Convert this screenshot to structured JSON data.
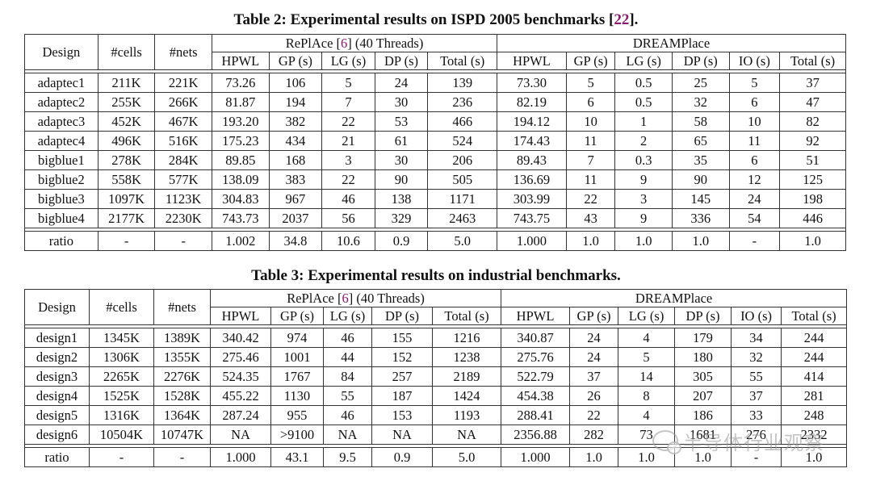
{
  "table2": {
    "caption_prefix": "Table 2:  Experimental results on ISPD 2005 benchmarks [",
    "caption_ref": "22",
    "caption_suffix": "].",
    "group_headers": {
      "design": "Design",
      "cells": "#cells",
      "nets": "#nets",
      "replace_prefix": "RePlAce [",
      "replace_ref": "6",
      "replace_suffix": "] (40 Threads)",
      "dreamplace": "DREAMPlace"
    },
    "sub_headers": [
      "HPWL",
      "GP (s)",
      "LG (s)",
      "DP (s)",
      "Total (s)",
      "HPWL",
      "GP (s)",
      "LG (s)",
      "DP (s)",
      "IO (s)",
      "Total (s)"
    ],
    "rows": [
      [
        "adaptec1",
        "211K",
        "221K",
        "73.26",
        "106",
        "5",
        "24",
        "139",
        "73.30",
        "5",
        "0.5",
        "25",
        "5",
        "37"
      ],
      [
        "adaptec2",
        "255K",
        "266K",
        "81.87",
        "194",
        "7",
        "30",
        "236",
        "82.19",
        "6",
        "0.5",
        "32",
        "6",
        "47"
      ],
      [
        "adaptec3",
        "452K",
        "467K",
        "193.20",
        "382",
        "22",
        "53",
        "466",
        "194.12",
        "10",
        "1",
        "58",
        "10",
        "82"
      ],
      [
        "adaptec4",
        "496K",
        "516K",
        "175.23",
        "434",
        "21",
        "61",
        "524",
        "174.43",
        "11",
        "2",
        "65",
        "11",
        "92"
      ],
      [
        "bigblue1",
        "278K",
        "284K",
        "89.85",
        "168",
        "3",
        "30",
        "206",
        "89.43",
        "7",
        "0.3",
        "35",
        "6",
        "51"
      ],
      [
        "bigblue2",
        "558K",
        "577K",
        "138.09",
        "383",
        "22",
        "90",
        "505",
        "136.69",
        "11",
        "9",
        "90",
        "12",
        "125"
      ],
      [
        "bigblue3",
        "1097K",
        "1123K",
        "304.83",
        "967",
        "46",
        "138",
        "1171",
        "303.99",
        "22",
        "3",
        "145",
        "24",
        "198"
      ],
      [
        "bigblue4",
        "2177K",
        "2230K",
        "743.73",
        "2037",
        "56",
        "329",
        "2463",
        "743.75",
        "43",
        "9",
        "336",
        "54",
        "446"
      ]
    ],
    "ratio": [
      "ratio",
      "-",
      "-",
      "1.002",
      "34.8",
      "10.6",
      "0.9",
      "5.0",
      "1.000",
      "1.0",
      "1.0",
      "1.0",
      "-",
      "1.0"
    ]
  },
  "table3": {
    "caption": "Table 3:  Experimental results on industrial benchmarks.",
    "group_headers": {
      "design": "Design",
      "cells": "#cells",
      "nets": "#nets",
      "replace_prefix": "RePlAce [",
      "replace_ref": "6",
      "replace_suffix": "] (40 Threads)",
      "dreamplace": "DREAMPlace"
    },
    "sub_headers": [
      "HPWL",
      "GP (s)",
      "LG (s)",
      "DP (s)",
      "Total (s)",
      "HPWL",
      "GP (s)",
      "LG (s)",
      "DP (s)",
      "IO (s)",
      "Total (s)"
    ],
    "rows": [
      [
        "design1",
        "1345K",
        "1389K",
        "340.42",
        "974",
        "46",
        "155",
        "1216",
        "340.87",
        "24",
        "4",
        "179",
        "34",
        "244"
      ],
      [
        "design2",
        "1306K",
        "1355K",
        "275.46",
        "1001",
        "44",
        "152",
        "1238",
        "275.76",
        "24",
        "5",
        "180",
        "32",
        "244"
      ],
      [
        "design3",
        "2265K",
        "2276K",
        "524.35",
        "1767",
        "84",
        "257",
        "2189",
        "522.79",
        "37",
        "14",
        "305",
        "55",
        "414"
      ],
      [
        "design4",
        "1525K",
        "1528K",
        "455.22",
        "1130",
        "55",
        "187",
        "1424",
        "454.38",
        "26",
        "8",
        "207",
        "37",
        "281"
      ],
      [
        "design5",
        "1316K",
        "1364K",
        "287.24",
        "955",
        "46",
        "153",
        "1193",
        "288.41",
        "22",
        "4",
        "186",
        "33",
        "248"
      ],
      [
        "design6",
        "10504K",
        "10747K",
        "NA",
        ">9100",
        "NA",
        "NA",
        "NA",
        "2356.88",
        "282",
        "73",
        "1681",
        "276",
        "2332"
      ]
    ],
    "ratio": [
      "ratio",
      "-",
      "-",
      "1.000",
      "43.1",
      "9.5",
      "0.9",
      "5.0",
      "1.000",
      "1.0",
      "1.0",
      "1.0",
      "-",
      "1.0"
    ]
  },
  "watermark": {
    "icon": "wechat-icon",
    "text": "半导体行业观察"
  }
}
